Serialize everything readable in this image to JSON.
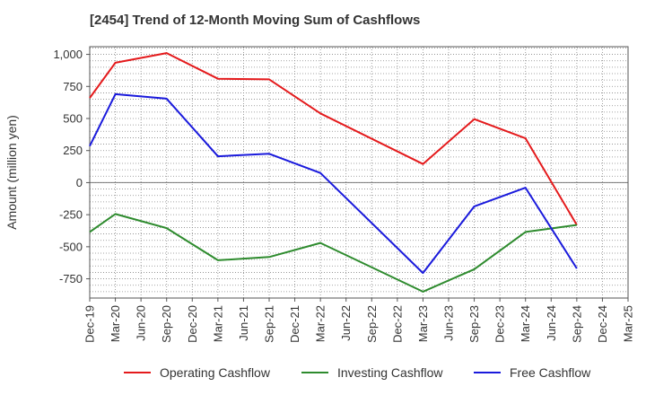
{
  "chart_data": {
    "type": "line",
    "title": "[2454]  Trend of 12-Month Moving Sum of Cashflows",
    "ylabel": "Amount (million yen)",
    "xlabel": "",
    "categories": [
      "Dec-19",
      "Mar-20",
      "Jun-20",
      "Sep-20",
      "Dec-20",
      "Mar-21",
      "Jun-21",
      "Sep-21",
      "Dec-21",
      "Mar-22",
      "Jun-22",
      "Sep-22",
      "Dec-22",
      "Mar-23",
      "Jun-23",
      "Sep-23",
      "Dec-23",
      "Mar-24",
      "Jun-24",
      "Sep-24",
      "Dec-24",
      "Mar-25"
    ],
    "yticks": [
      "1,000",
      "750",
      "500",
      "250",
      "0",
      "-250",
      "-500",
      "-750"
    ],
    "ylim": [
      -900,
      1060
    ],
    "grid": true,
    "legend_position": "bottom",
    "series": [
      {
        "name": "Operating Cashflow",
        "color": "#e41a1c",
        "values": [
          660,
          935,
          null,
          1010,
          null,
          810,
          null,
          805,
          null,
          540,
          null,
          null,
          null,
          145,
          null,
          495,
          null,
          345,
          null,
          -330,
          null,
          null
        ]
      },
      {
        "name": "Investing Cashflow",
        "color": "#2e8b2e",
        "values": [
          -385,
          -245,
          null,
          -355,
          null,
          -605,
          null,
          -580,
          null,
          -470,
          null,
          null,
          null,
          -850,
          null,
          -675,
          null,
          -385,
          null,
          -330,
          null,
          null
        ]
      },
      {
        "name": "Free Cashflow",
        "color": "#1a1adc",
        "values": [
          285,
          690,
          null,
          655,
          null,
          205,
          null,
          225,
          null,
          75,
          null,
          null,
          null,
          -705,
          null,
          -185,
          null,
          -40,
          null,
          -670,
          null,
          null
        ]
      }
    ]
  }
}
